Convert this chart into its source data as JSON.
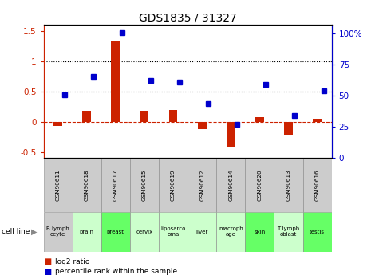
{
  "title": "GDS1835 / 31327",
  "samples": [
    "GSM90611",
    "GSM90618",
    "GSM90617",
    "GSM90615",
    "GSM90619",
    "GSM90612",
    "GSM90614",
    "GSM90620",
    "GSM90613",
    "GSM90616"
  ],
  "cell_lines": [
    "B lymph\nocyte",
    "brain",
    "breast",
    "cervix",
    "liposarco\noma",
    "liver",
    "macroph\nage",
    "skin",
    "T lymph\noblast",
    "testis"
  ],
  "cell_line_colors": [
    "#cccccc",
    "#ccffcc",
    "#66ff66",
    "#ccffcc",
    "#ccffcc",
    "#ccffcc",
    "#ccffcc",
    "#66ff66",
    "#ccffcc",
    "#66ff66"
  ],
  "log2_ratio": [
    -0.07,
    0.18,
    1.33,
    0.18,
    0.2,
    -0.12,
    -0.42,
    0.07,
    -0.22,
    0.05
  ],
  "percentile_rank": [
    0.44,
    0.74,
    1.47,
    0.68,
    0.65,
    0.3,
    -0.04,
    0.61,
    0.1,
    0.51
  ],
  "ylim_left": [
    -0.6,
    1.6
  ],
  "ylim_right": [
    0,
    107
  ],
  "yticks_left": [
    -0.5,
    0.0,
    0.5,
    1.0,
    1.5
  ],
  "yticks_right": [
    0,
    25,
    50,
    75,
    100
  ],
  "hlines": [
    0.5,
    1.0
  ],
  "bar_color": "#cc2200",
  "dot_color": "#0000cc",
  "legend_label_red": "log2 ratio",
  "legend_label_blue": "percentile rank within the sample"
}
